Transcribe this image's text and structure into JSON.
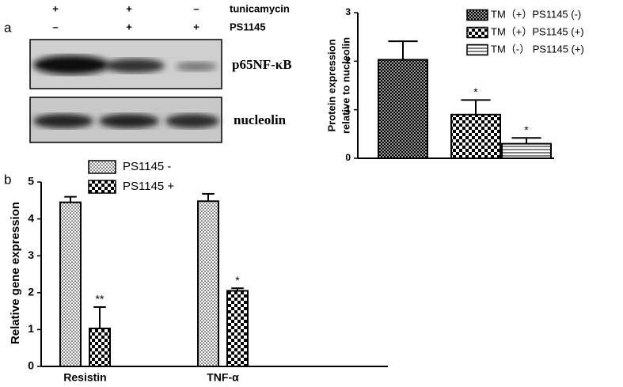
{
  "panel_labels": [
    "a",
    "b"
  ],
  "blot": {
    "row_labels": [
      "tunicamycin",
      "PS1145"
    ],
    "signs": [
      [
        "+",
        "+",
        "–"
      ],
      [
        "–",
        "+",
        "+"
      ]
    ],
    "band_labels": [
      "p65NF-κB",
      "nucleolin"
    ]
  },
  "chart_data": [
    {
      "type": "bar",
      "y_label": [
        "Protein expression",
        "relative to nucleolin"
      ],
      "categories": [
        null
      ],
      "series": [
        {
          "name": "TM（+）PS1145 (-)",
          "color": "#000000",
          "pattern": "crosshatch",
          "values": [
            2.03
          ],
          "errors": [
            0.38
          ]
        },
        {
          "name": "TM（+）PS1145 (+)",
          "color": "#000000",
          "pattern": "checker",
          "values": [
            0.9
          ],
          "errors": [
            0.3
          ]
        },
        {
          "name": "TM（-） PS1145 (+)",
          "color": "#000000",
          "pattern": "hstripe",
          "values": [
            0.3
          ],
          "errors": [
            0.12
          ]
        }
      ],
      "annotations": [
        "*",
        "*"
      ],
      "ylim": [
        0,
        3
      ],
      "yticks": [
        0,
        1,
        2,
        3
      ],
      "legend": "top-right"
    },
    {
      "type": "bar",
      "y_label": [
        "Relative gene expression"
      ],
      "categories": [
        "Resistin",
        "TNF-α"
      ],
      "series": [
        {
          "name": "PS1145 -",
          "color": "#000000",
          "pattern": "dots",
          "values": [
            4.45,
            4.48
          ],
          "errors": [
            0.15,
            0.2
          ]
        },
        {
          "name": "PS1145 +",
          "color": "#000000",
          "pattern": "checker",
          "values": [
            1.03,
            2.05
          ],
          "errors": [
            0.58,
            0.07
          ]
        }
      ],
      "annotations": [
        "**",
        "*"
      ],
      "ylim": [
        0,
        5
      ],
      "yticks": [
        0,
        1,
        2,
        3,
        4,
        5
      ],
      "legend": "top-left"
    }
  ]
}
